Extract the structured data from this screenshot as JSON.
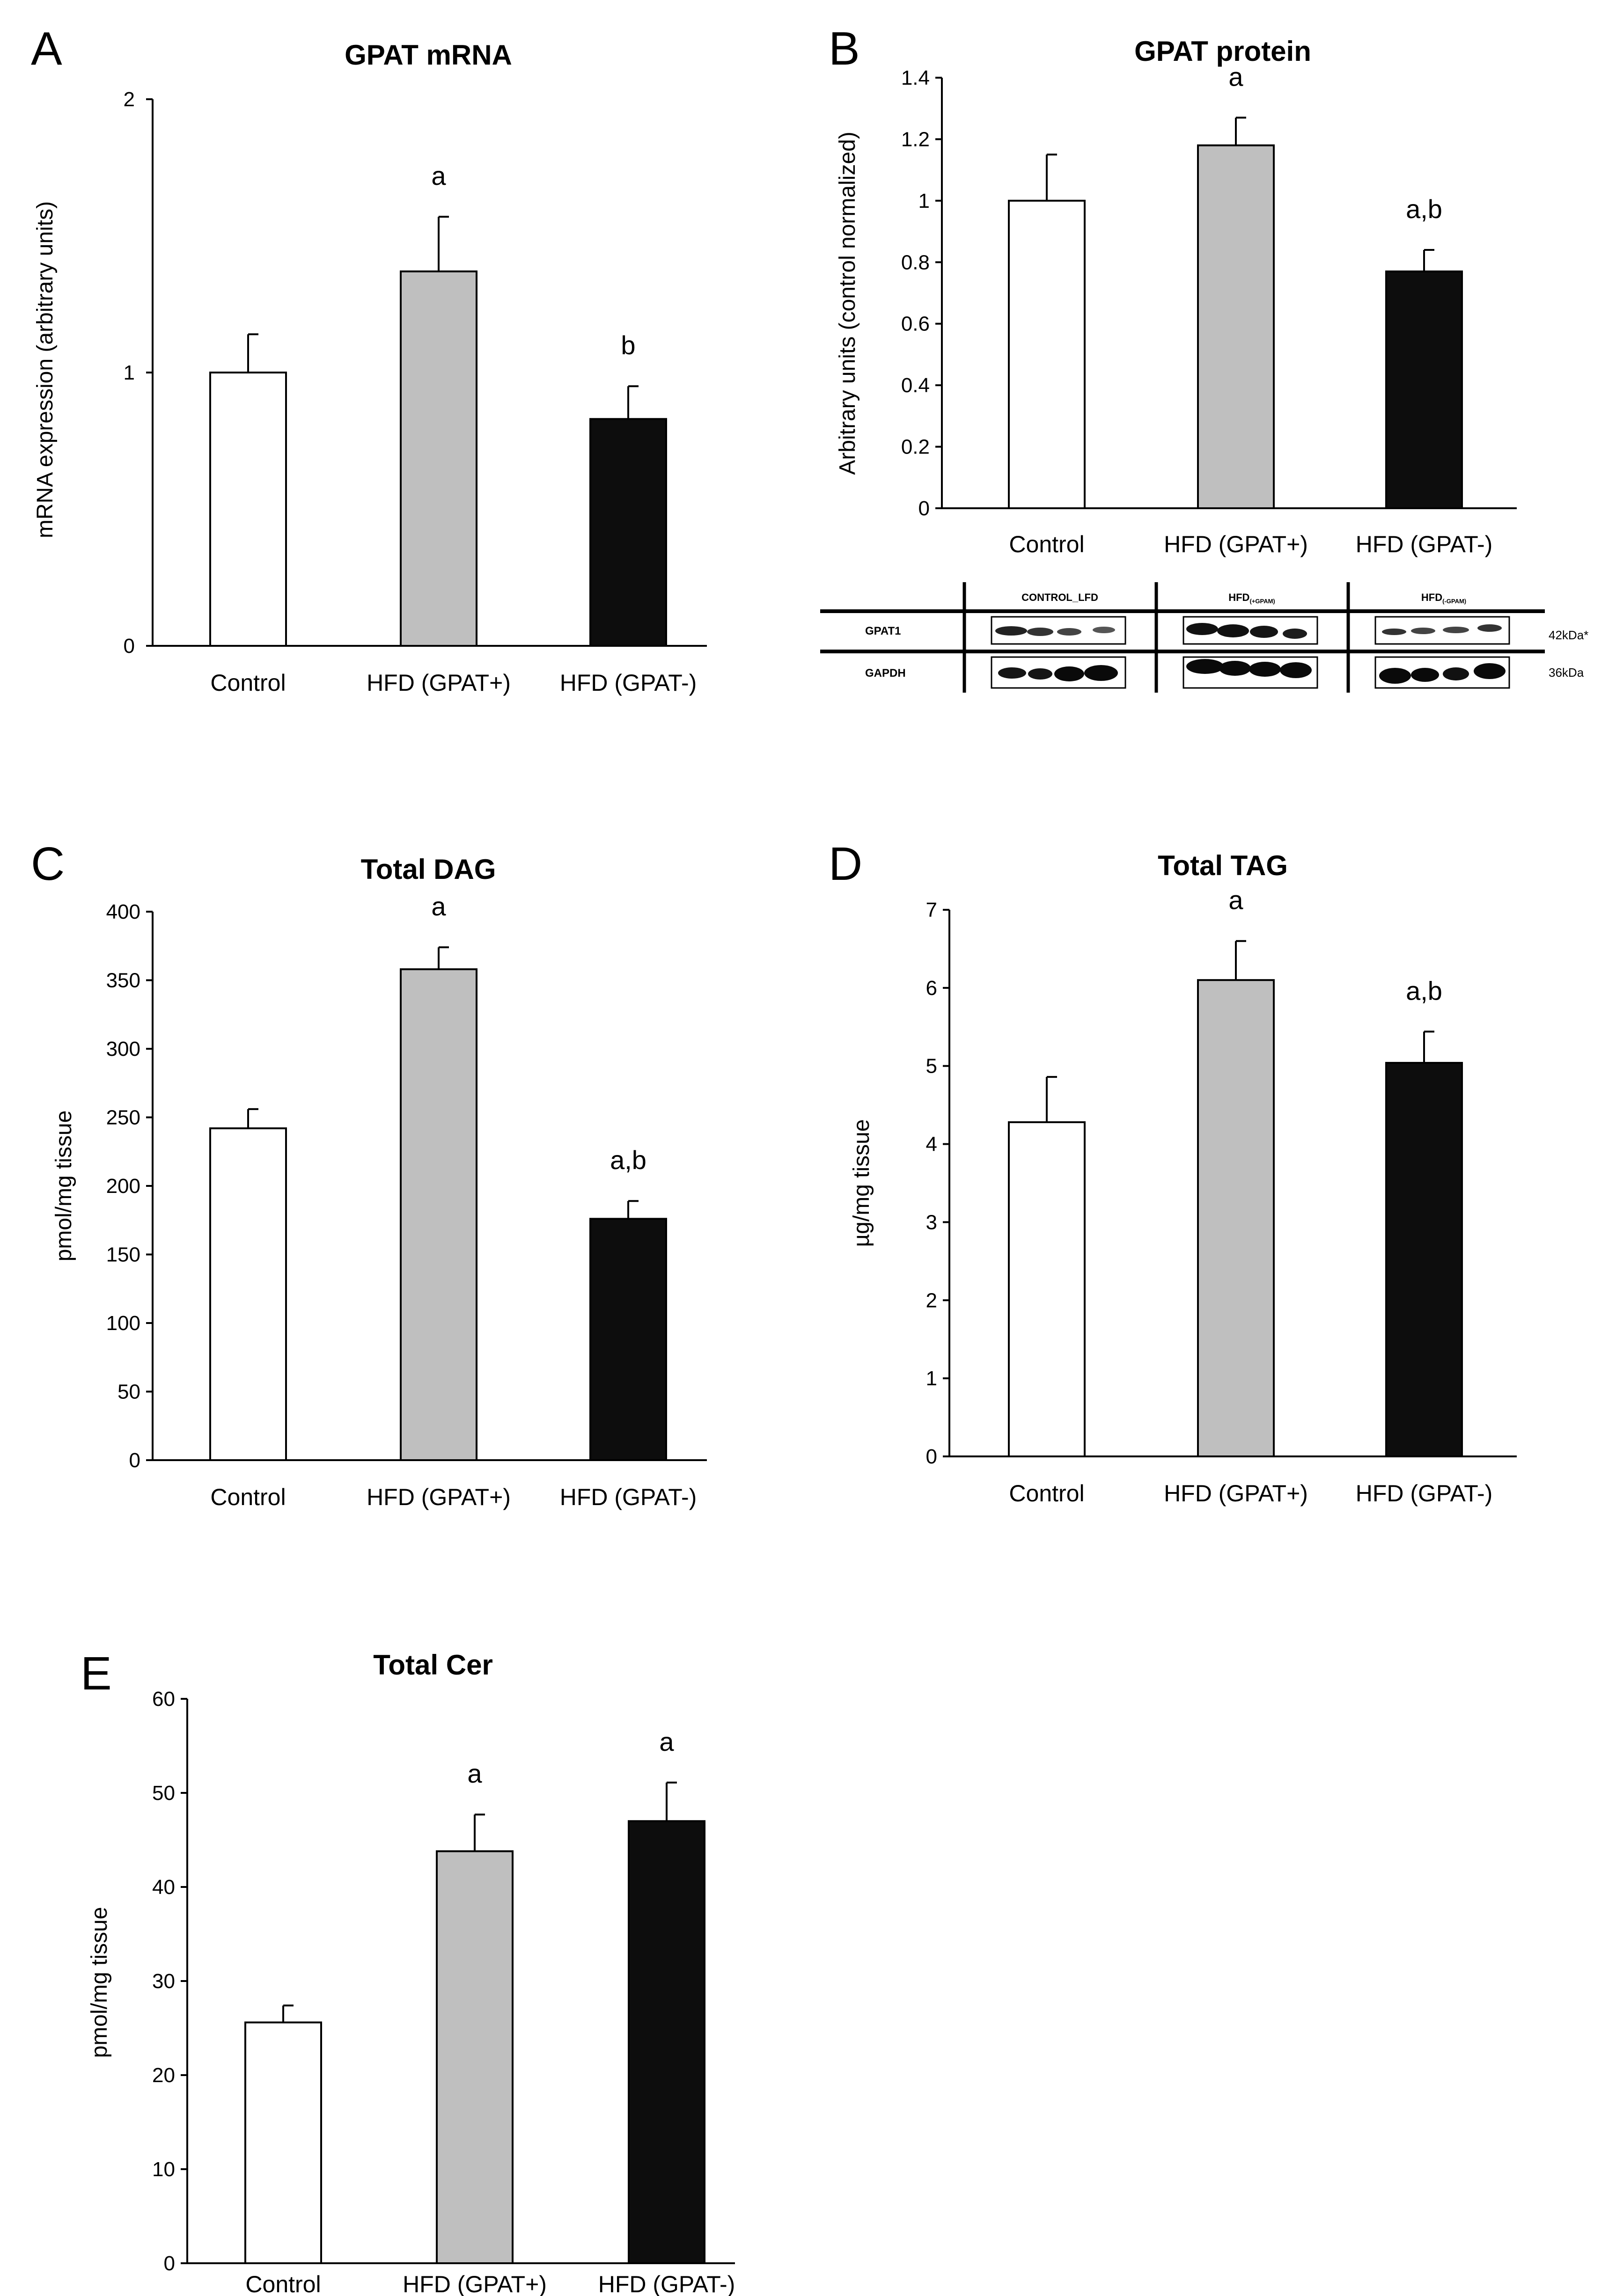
{
  "figure": {
    "colors": {
      "control": "#ffffff",
      "hfd_pos": "#bfbfbf",
      "hfd_neg": "#0d0d0d",
      "axis": "#000000"
    }
  },
  "chart_data": [
    {
      "panel": "A",
      "type": "bar",
      "title": "GPAT mRNA",
      "xlabel": "",
      "ylabel": "mRNA expression (arbitrary units)",
      "categories": [
        "Control",
        "HFD (GPAT+)",
        "HFD (GPAT-)"
      ],
      "values": [
        1.0,
        1.37,
        0.83
      ],
      "errors": [
        0.14,
        0.2,
        0.12
      ],
      "annotations": [
        "",
        "a",
        "b"
      ],
      "ylim": [
        0,
        2
      ],
      "yticks": [
        0,
        1,
        2
      ],
      "ytick_labels": [
        "0",
        "1",
        "2"
      ]
    },
    {
      "panel": "B",
      "type": "bar",
      "title": "GPAT protein",
      "xlabel": "",
      "ylabel": "Arbitrary units (control normalized)",
      "categories": [
        "Control",
        "HFD (GPAT+)",
        "HFD (GPAT-)"
      ],
      "values": [
        1.0,
        1.18,
        0.77
      ],
      "errors": [
        0.15,
        0.09,
        0.07
      ],
      "annotations": [
        "",
        "a",
        "a,b"
      ],
      "ylim": [
        0,
        1.4
      ],
      "yticks": [
        0,
        0.2,
        0.4,
        0.6,
        0.8,
        1,
        1.2,
        1.4
      ],
      "ytick_labels": [
        "0",
        "0.2",
        "0.4",
        "0.6",
        "0.8",
        "1",
        "1.2",
        "1.4"
      ]
    },
    {
      "panel": "C",
      "type": "bar",
      "title": "Total  DAG",
      "xlabel": "",
      "ylabel": "pmol/mg tissue",
      "categories": [
        "Control",
        "HFD (GPAT+)",
        "HFD (GPAT-)"
      ],
      "values": [
        242,
        358,
        176
      ],
      "errors": [
        14,
        16,
        13
      ],
      "annotations": [
        "",
        "a",
        "a,b"
      ],
      "ylim": [
        0,
        400
      ],
      "yticks": [
        0,
        50,
        100,
        150,
        200,
        250,
        300,
        350,
        400
      ],
      "ytick_labels": [
        "0",
        "50",
        "100",
        "150",
        "200",
        "250",
        "300",
        "350",
        "400"
      ]
    },
    {
      "panel": "D",
      "type": "bar",
      "title": "Total  TAG",
      "xlabel": "",
      "ylabel": "µg/mg tissue",
      "categories": [
        "Control",
        "HFD (GPAT+)",
        "HFD (GPAT-)"
      ],
      "values": [
        4.28,
        6.1,
        5.04
      ],
      "errors": [
        0.58,
        0.5,
        0.4
      ],
      "annotations": [
        "",
        "a",
        "a,b"
      ],
      "ylim": [
        0,
        7
      ],
      "yticks": [
        0,
        1,
        2,
        3,
        4,
        5,
        6,
        7
      ],
      "ytick_labels": [
        "0",
        "1",
        "2",
        "3",
        "4",
        "5",
        "6",
        "7"
      ]
    },
    {
      "panel": "E",
      "type": "bar",
      "title": "Total Cer",
      "xlabel": "",
      "ylabel": "pmol/mg tissue",
      "categories": [
        "Control",
        "HFD (GPAT+)",
        "HFD (GPAT-)"
      ],
      "values": [
        25.6,
        43.8,
        47.0
      ],
      "errors": [
        1.8,
        3.9,
        4.1
      ],
      "annotations": [
        "",
        "a",
        "a"
      ],
      "ylim": [
        0,
        60
      ],
      "yticks": [
        0,
        10,
        20,
        30,
        40,
        50,
        60
      ],
      "ytick_labels": [
        "0",
        "10",
        "20",
        "30",
        "40",
        "50",
        "60"
      ]
    }
  ],
  "western_blot": {
    "groups": [
      "CONTROL_LFD",
      "HFD",
      "HFD"
    ],
    "group_subscripts": [
      "",
      "(+GPAM)",
      "(-GPAM)"
    ],
    "rows": [
      "GPAT1",
      "GAPDH"
    ],
    "sizes": [
      "42kDa*",
      "36kDa"
    ]
  }
}
